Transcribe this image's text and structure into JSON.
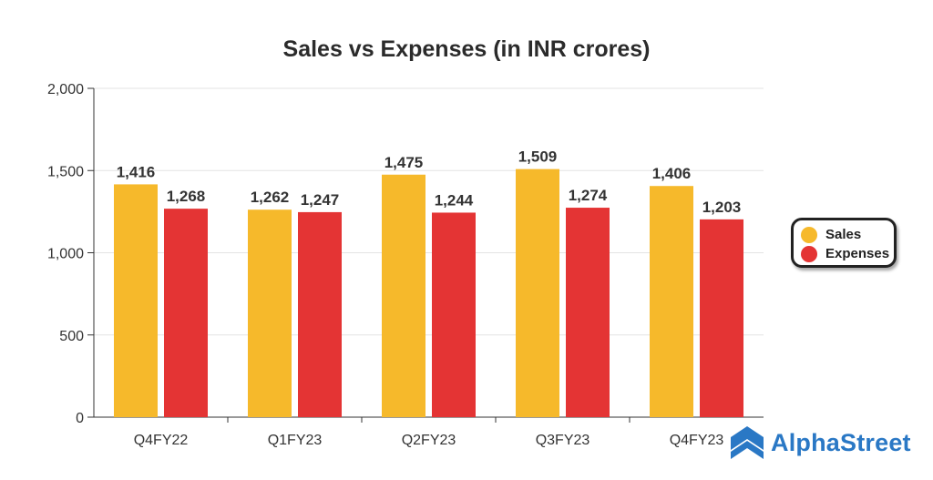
{
  "chart_data": {
    "type": "bar",
    "title": "Sales vs Expenses (in INR crores)",
    "xlabel": "",
    "ylabel": "",
    "ylim": [
      0,
      2000
    ],
    "yticks": [
      0,
      500,
      1000,
      1500,
      2000
    ],
    "ytick_labels": [
      "0",
      "500",
      "1,000",
      "1,500",
      "2,000"
    ],
    "grid": true,
    "categories": [
      "Q4FY22",
      "Q1FY23",
      "Q2FY23",
      "Q3FY23",
      "Q4FY23"
    ],
    "series": [
      {
        "name": "Sales",
        "color": "#F6B92B",
        "values": [
          1416,
          1262,
          1475,
          1509,
          1406
        ],
        "labels": [
          "1,416",
          "1,262",
          "1,475",
          "1,509",
          "1,406"
        ]
      },
      {
        "name": "Expenses",
        "color": "#E43434",
        "values": [
          1268,
          1247,
          1244,
          1274,
          1203
        ],
        "labels": [
          "1,268",
          "1,247",
          "1,244",
          "1,274",
          "1,203"
        ]
      }
    ],
    "legend_position": "right"
  },
  "legend": {
    "items": [
      {
        "label": "Sales",
        "color": "#F6B92B"
      },
      {
        "label": "Expenses",
        "color": "#E43434"
      }
    ]
  },
  "brand": {
    "name": "AlphaStreet",
    "color": "#2A78C5"
  }
}
